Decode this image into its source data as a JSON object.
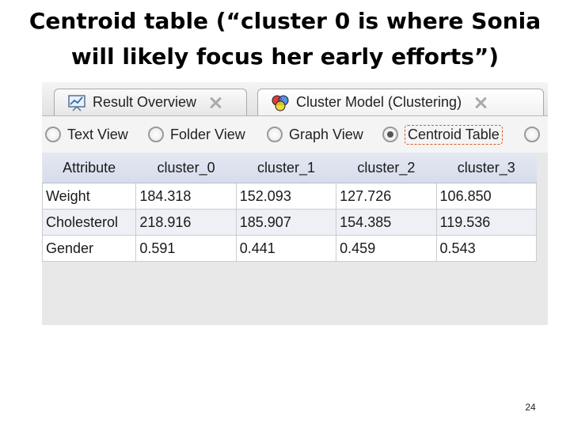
{
  "slide": {
    "title_line1": "Centroid table (“cluster 0 is where Sonia",
    "title_line2": "will likely focus her early efforts”)",
    "page_number": "24"
  },
  "tabs": [
    {
      "label": "Result Overview",
      "icon": "result-overview-icon"
    },
    {
      "label": "Cluster Model (Clustering)",
      "icon": "cluster-model-icon"
    }
  ],
  "views": [
    {
      "label": "Text View",
      "selected": false
    },
    {
      "label": "Folder View",
      "selected": false
    },
    {
      "label": "Graph View",
      "selected": false
    },
    {
      "label": "Centroid Table",
      "selected": true
    }
  ],
  "table": {
    "headers": [
      "Attribute",
      "cluster_0",
      "cluster_1",
      "cluster_2",
      "cluster_3"
    ],
    "rows": [
      [
        "Weight",
        "184.318",
        "152.093",
        "127.726",
        "106.850"
      ],
      [
        "Cholesterol",
        "218.916",
        "185.907",
        "154.385",
        "119.536"
      ],
      [
        "Gender",
        "0.591",
        "0.441",
        "0.459",
        "0.543"
      ]
    ]
  }
}
